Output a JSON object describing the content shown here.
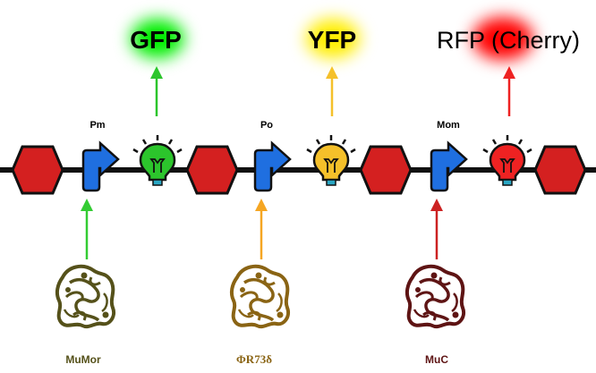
{
  "reporters": [
    {
      "label": "GFP",
      "color": "#2cc52c",
      "glow": "#00ee00"
    },
    {
      "label": "YFP",
      "color": "#f5c02a",
      "glow": "#ffee00"
    },
    {
      "label": "RFP (Cherry)",
      "color": "#ee2222",
      "glow": "#ff0000"
    }
  ],
  "promoters": [
    {
      "label": "Pm"
    },
    {
      "label": "Po"
    },
    {
      "label": "Mom"
    }
  ],
  "proteins": [
    {
      "label": "MuMor",
      "color": "#55511a",
      "arrow_color": "#33cc33"
    },
    {
      "label": "ΦR73δ",
      "color": "#8a6414",
      "arrow_color": "#f5a623"
    },
    {
      "label": "MuC",
      "color": "#5e1414",
      "arrow_color": "#cc2222"
    }
  ],
  "colors": {
    "dna": "#111111",
    "terminator": "#d42020",
    "promoter_arrow": "#1f6fe0",
    "bulb_base": "#2aa7c4"
  }
}
